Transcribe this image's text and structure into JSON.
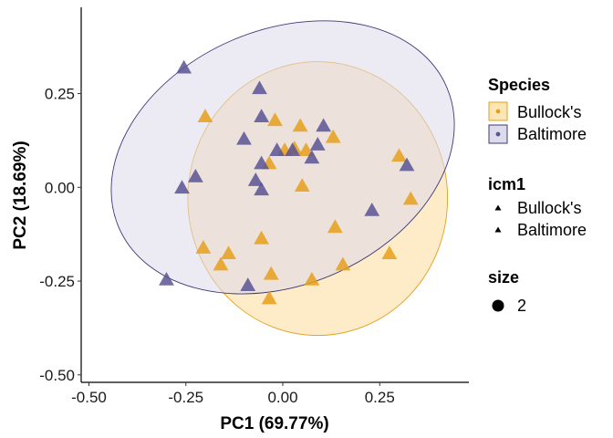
{
  "chart_data": {
    "type": "scatter",
    "xlabel": "PC1 (69.77%)",
    "ylabel": "PC2 (18.69%)",
    "xlim": [
      -0.52,
      0.48
    ],
    "ylim": [
      -0.52,
      0.48
    ],
    "x_ticks": [
      -0.5,
      -0.25,
      0.0,
      0.25
    ],
    "y_ticks": [
      -0.5,
      -0.25,
      0.0,
      0.25
    ],
    "x_tick_labels": [
      "-0.50",
      "-0.25",
      "0.00",
      "0.25"
    ],
    "y_tick_labels": [
      "-0.50",
      "-0.25",
      "0.00",
      "0.25"
    ],
    "grid": false,
    "legend_placement": "right",
    "marker": "triangle",
    "series": [
      {
        "name": "Bullock's",
        "color": "#E69F1A",
        "ellipse_fill": "#FDE6B6",
        "ellipse_stroke": "#E69F1A",
        "ellipse": {
          "cx": 0.09,
          "cy": -0.03,
          "rx": 0.335,
          "ry": 0.365,
          "angle": 0
        },
        "points": [
          {
            "x": -0.2,
            "y": 0.19
          },
          {
            "x": -0.02,
            "y": 0.18
          },
          {
            "x": 0.045,
            "y": 0.165
          },
          {
            "x": 0.13,
            "y": 0.135
          },
          {
            "x": 0.03,
            "y": 0.105
          },
          {
            "x": 0.005,
            "y": 0.1
          },
          {
            "x": 0.06,
            "y": 0.1
          },
          {
            "x": -0.035,
            "y": 0.065
          },
          {
            "x": 0.3,
            "y": 0.085
          },
          {
            "x": 0.05,
            "y": 0.005
          },
          {
            "x": 0.33,
            "y": -0.03
          },
          {
            "x": 0.135,
            "y": -0.105
          },
          {
            "x": -0.205,
            "y": -0.16
          },
          {
            "x": -0.14,
            "y": -0.175
          },
          {
            "x": -0.055,
            "y": -0.135
          },
          {
            "x": 0.275,
            "y": -0.175
          },
          {
            "x": -0.16,
            "y": -0.205
          },
          {
            "x": 0.155,
            "y": -0.205
          },
          {
            "x": -0.03,
            "y": -0.23
          },
          {
            "x": 0.075,
            "y": -0.245
          },
          {
            "x": -0.035,
            "y": -0.295
          }
        ]
      },
      {
        "name": "Baltimore",
        "color": "#5B5394",
        "ellipse_fill": "#DCDAEB",
        "ellipse_stroke": "#3E3A78",
        "ellipse": {
          "cx": 0.0,
          "cy": 0.08,
          "rx": 0.46,
          "ry": 0.34,
          "angle": -23
        },
        "points": [
          {
            "x": -0.255,
            "y": 0.32
          },
          {
            "x": -0.06,
            "y": 0.265
          },
          {
            "x": -0.055,
            "y": 0.19
          },
          {
            "x": 0.105,
            "y": 0.165
          },
          {
            "x": -0.1,
            "y": 0.13
          },
          {
            "x": 0.09,
            "y": 0.115
          },
          {
            "x": -0.015,
            "y": 0.1
          },
          {
            "x": 0.025,
            "y": 0.1
          },
          {
            "x": 0.075,
            "y": 0.08
          },
          {
            "x": -0.055,
            "y": 0.065
          },
          {
            "x": 0.32,
            "y": 0.06
          },
          {
            "x": -0.225,
            "y": 0.03
          },
          {
            "x": -0.26,
            "y": 0.0
          },
          {
            "x": -0.07,
            "y": 0.02
          },
          {
            "x": -0.055,
            "y": -0.005
          },
          {
            "x": 0.23,
            "y": -0.06
          },
          {
            "x": -0.3,
            "y": -0.245
          },
          {
            "x": -0.09,
            "y": -0.26
          }
        ]
      }
    ],
    "legends": [
      {
        "title": "Species",
        "entries": [
          "Bullock's",
          "Baltimore"
        ]
      },
      {
        "title": "icm1",
        "entries": [
          "Bullock's",
          "Baltimore"
        ]
      },
      {
        "title": "size",
        "entries": [
          "2"
        ]
      }
    ]
  }
}
